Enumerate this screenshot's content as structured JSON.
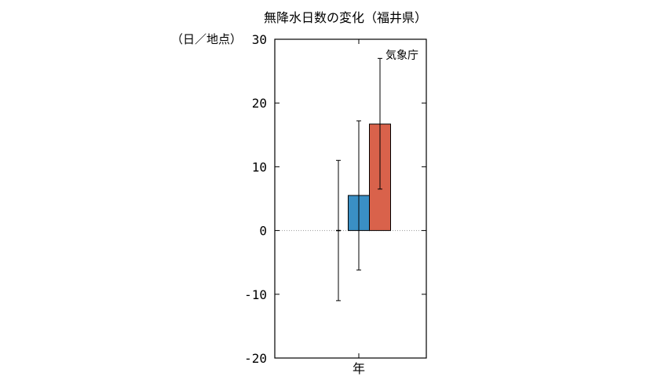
{
  "chart_data": {
    "type": "bar",
    "title": "無降水日数の変化（福井県）",
    "ylabel": "（日／地点）",
    "ylim": [
      -20,
      30
    ],
    "yticks": [
      30,
      20,
      10,
      0,
      -10,
      -20
    ],
    "yticklabels": [
      "30",
      "20",
      "10",
      "0",
      "-10",
      "-20"
    ],
    "categories": [
      "年"
    ],
    "source": "気象庁",
    "series": [
      {
        "value": 0,
        "err_low": -11,
        "err_high": 11,
        "color": "#000000"
      },
      {
        "value": 5.5,
        "err_low": -6.2,
        "err_high": 17.2,
        "color": "#3a8fc4"
      },
      {
        "value": 16.7,
        "err_low": 6.5,
        "err_high": 27,
        "color": "#d9624b"
      }
    ],
    "zero_line": "dotted",
    "grid": false
  }
}
